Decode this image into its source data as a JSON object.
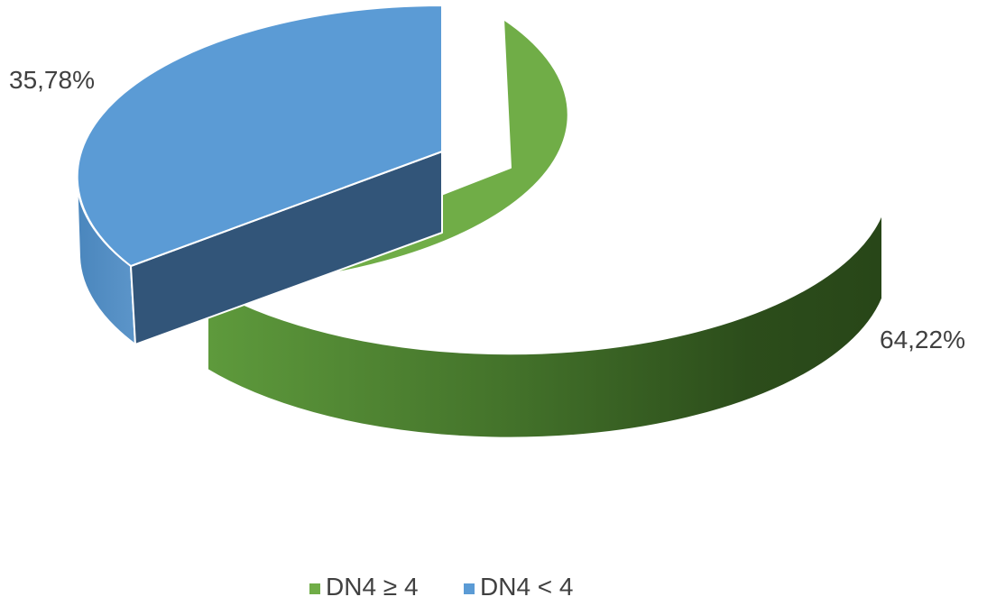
{
  "chart_data": {
    "type": "pie",
    "title": "",
    "series": [
      {
        "name": "DN4 ≥ 4",
        "value": 64.22,
        "label": "64,22%",
        "color": "#70AD47"
      },
      {
        "name": "DN4 < 4",
        "value": 35.78,
        "label": "35,78%",
        "color": "#5B9BD5"
      }
    ],
    "legend_position": "bottom",
    "style": "3d-exploded"
  }
}
